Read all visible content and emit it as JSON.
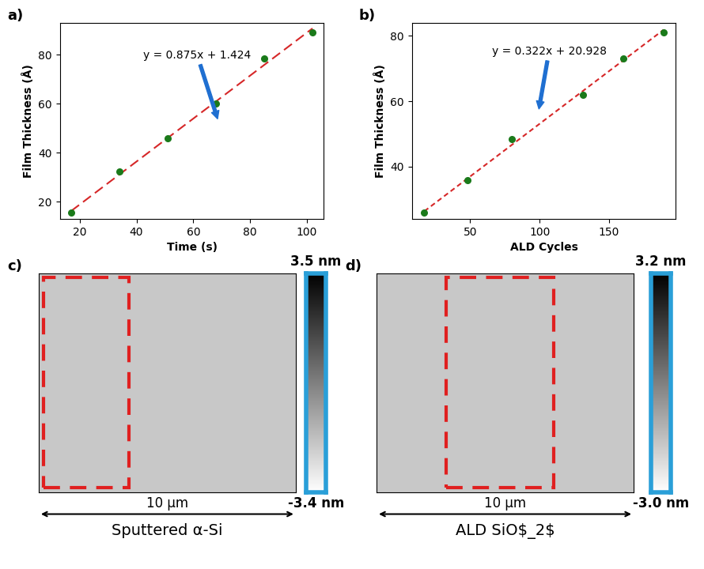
{
  "chart_data": [
    {
      "type": "scatter",
      "panel": "a)",
      "x_label": "Time (s)",
      "y_label": "Film Thickness (Å)",
      "xlim": [
        13,
        106
      ],
      "xticks": [
        20,
        40,
        60,
        80,
        100
      ],
      "ylim": [
        13,
        93
      ],
      "yticks": [
        20,
        40,
        60,
        80
      ],
      "points": {
        "x": [
          17,
          34,
          51,
          68,
          85,
          102
        ],
        "values": [
          15.5,
          32.5,
          46,
          60,
          78.5,
          89
        ],
        "color": "#1a7a1a",
        "marker": "o"
      },
      "fit": {
        "x": [
          17,
          102
        ],
        "values": [
          16.3,
          90.7
        ],
        "color": "#d62728",
        "line_style": "dashed"
      },
      "annotation": "y = 0.875x + 1.424"
    },
    {
      "type": "scatter",
      "panel": "b)",
      "x_label": "ALD Cycles",
      "y_label": "Film Thickness (Å)",
      "xlim": [
        8,
        198
      ],
      "xticks": [
        50,
        100,
        150
      ],
      "ylim": [
        24,
        84
      ],
      "yticks": [
        40,
        60,
        80
      ],
      "points": {
        "x": [
          17,
          48,
          80,
          131,
          160,
          189
        ],
        "values": [
          26,
          36,
          48.5,
          62,
          73,
          81
        ],
        "color": "#1a7a1a",
        "marker": "o"
      },
      "fit": {
        "x": [
          17,
          189
        ],
        "values": [
          26.4,
          81.8
        ],
        "color": "#d62728",
        "line_style": "dotted"
      },
      "annotation": "y = 0.322x + 20.928"
    }
  ],
  "images": [
    {
      "panel": "c)",
      "caption": "Sputtered α-Si",
      "scale_label": "10 µm",
      "colorbar": {
        "range": [
          -3.4,
          3.5
        ],
        "ticks": [
          {
            "value": 3.5,
            "label": "3.5 nm"
          },
          {
            "value": -3.4,
            "label": "-3.4 nm"
          }
        ]
      }
    },
    {
      "panel": "d)",
      "caption": "ALD SiO$_2$",
      "scale_label": "10 µm",
      "colorbar": {
        "range": [
          -3.0,
          3.2
        ],
        "ticks": [
          {
            "value": 3.2,
            "label": "3.2 nm"
          },
          {
            "value": -3.0,
            "label": "-3.0 nm"
          }
        ]
      }
    }
  ]
}
